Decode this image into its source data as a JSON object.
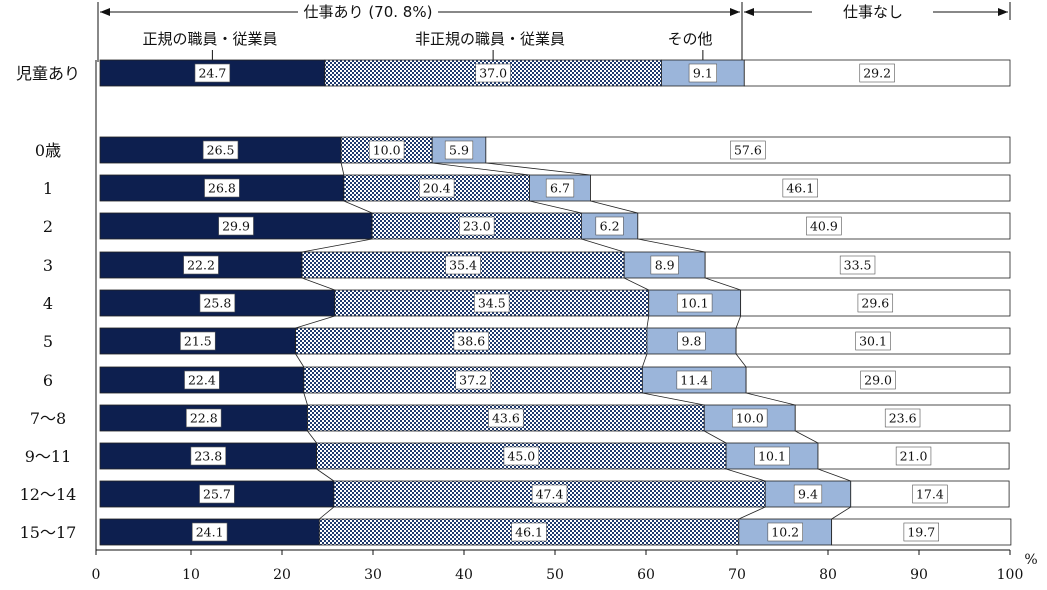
{
  "chart_data": {
    "type": "bar",
    "orientation": "horizontal",
    "stacked": true,
    "categories": [
      "児童あり",
      "0歳",
      "1",
      "2",
      "3",
      "4",
      "5",
      "6",
      "7～8",
      "9～11",
      "12～14",
      "15～17"
    ],
    "series": [
      {
        "name": "正規の職員・従業員",
        "color": "#0d1f4f",
        "pattern": "solid",
        "values": [
          24.7,
          26.5,
          26.8,
          29.9,
          22.2,
          25.8,
          21.5,
          22.4,
          22.8,
          23.8,
          25.7,
          24.1
        ]
      },
      {
        "name": "非正規の職員・従業員",
        "color": "#1f3a6e",
        "pattern": "checker",
        "values": [
          37.0,
          10.0,
          20.4,
          23.0,
          35.4,
          34.5,
          38.6,
          37.2,
          43.6,
          45.0,
          47.4,
          46.1
        ]
      },
      {
        "name": "その他",
        "color": "#9bb5da",
        "pattern": "solid",
        "values": [
          9.1,
          5.9,
          6.7,
          6.2,
          8.9,
          10.1,
          9.8,
          11.4,
          10.0,
          10.1,
          9.4,
          10.2
        ]
      },
      {
        "name": "",
        "color": "#ffffff",
        "pattern": "solid",
        "values": [
          29.2,
          57.6,
          46.1,
          40.9,
          33.5,
          29.6,
          30.1,
          29.0,
          23.6,
          21.0,
          17.4,
          19.7
        ]
      }
    ],
    "group_header_work": "仕事あり (70. 8%)",
    "group_header_nowork": "仕事なし",
    "x_ticks": [
      0,
      10,
      20,
      30,
      40,
      50,
      60,
      70,
      80,
      90,
      100
    ],
    "x_unit": "%",
    "xlim": [
      0,
      100
    ],
    "work_total": 70.8,
    "grid": false
  }
}
